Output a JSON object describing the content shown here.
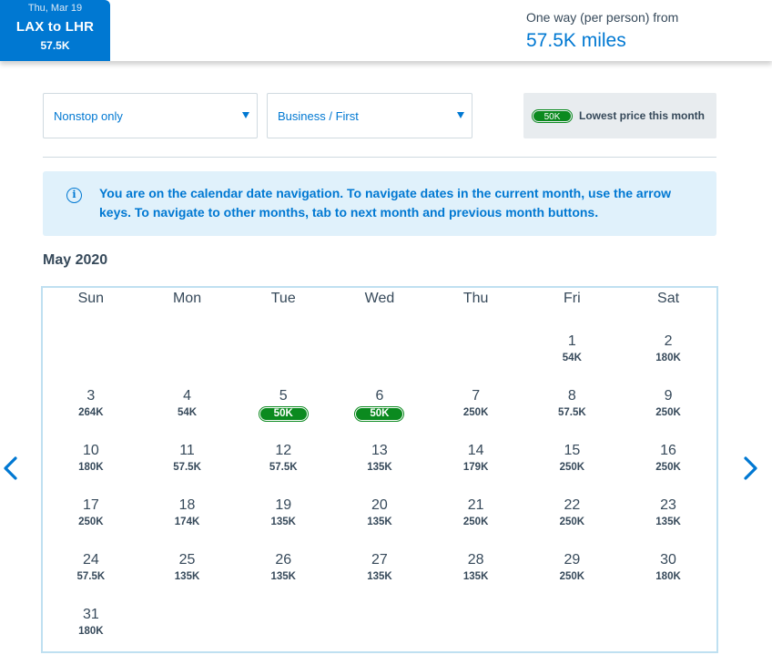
{
  "header": {
    "date_tab": {
      "date": "Thu, Mar 19",
      "route": "LAX to LHR",
      "price": "57.5K"
    },
    "fare_label": "One way (per person) from",
    "fare_value": "57.5K miles"
  },
  "filters": {
    "stops": "Nonstop only",
    "cabin": "Business / First"
  },
  "legend": {
    "badge": "50K",
    "label": "Lowest price this month"
  },
  "info_banner": {
    "text": "You are on the calendar date navigation. To navigate dates in the current month, use the arrow keys. To navigate to other months, tab to next month and previous month buttons."
  },
  "calendar": {
    "month": "May 2020",
    "weekdays": [
      "Sun",
      "Mon",
      "Tue",
      "Wed",
      "Thu",
      "Fri",
      "Sat"
    ],
    "first_weekday_index": 5,
    "days": [
      {
        "day": "1",
        "price": "54K",
        "lowest": false
      },
      {
        "day": "2",
        "price": "180K",
        "lowest": false
      },
      {
        "day": "3",
        "price": "264K",
        "lowest": false
      },
      {
        "day": "4",
        "price": "54K",
        "lowest": false
      },
      {
        "day": "5",
        "price": "50K",
        "lowest": true
      },
      {
        "day": "6",
        "price": "50K",
        "lowest": true
      },
      {
        "day": "7",
        "price": "250K",
        "lowest": false
      },
      {
        "day": "8",
        "price": "57.5K",
        "lowest": false
      },
      {
        "day": "9",
        "price": "250K",
        "lowest": false
      },
      {
        "day": "10",
        "price": "180K",
        "lowest": false
      },
      {
        "day": "11",
        "price": "57.5K",
        "lowest": false
      },
      {
        "day": "12",
        "price": "57.5K",
        "lowest": false
      },
      {
        "day": "13",
        "price": "135K",
        "lowest": false
      },
      {
        "day": "14",
        "price": "179K",
        "lowest": false
      },
      {
        "day": "15",
        "price": "250K",
        "lowest": false
      },
      {
        "day": "16",
        "price": "250K",
        "lowest": false
      },
      {
        "day": "17",
        "price": "250K",
        "lowest": false
      },
      {
        "day": "18",
        "price": "174K",
        "lowest": false
      },
      {
        "day": "19",
        "price": "135K",
        "lowest": false
      },
      {
        "day": "20",
        "price": "135K",
        "lowest": false
      },
      {
        "day": "21",
        "price": "250K",
        "lowest": false
      },
      {
        "day": "22",
        "price": "250K",
        "lowest": false
      },
      {
        "day": "23",
        "price": "135K",
        "lowest": false
      },
      {
        "day": "24",
        "price": "57.5K",
        "lowest": false
      },
      {
        "day": "25",
        "price": "135K",
        "lowest": false
      },
      {
        "day": "26",
        "price": "135K",
        "lowest": false
      },
      {
        "day": "27",
        "price": "135K",
        "lowest": false
      },
      {
        "day": "28",
        "price": "135K",
        "lowest": false
      },
      {
        "day": "29",
        "price": "250K",
        "lowest": false
      },
      {
        "day": "30",
        "price": "180K",
        "lowest": false
      },
      {
        "day": "31",
        "price": "180K",
        "lowest": false
      }
    ]
  },
  "icons": {
    "prev": "chevron-left-icon",
    "next": "chevron-right-icon",
    "info": "info-icon",
    "dropdown": "caret-down-icon"
  },
  "colors": {
    "brand_blue": "#0078d2",
    "lowest_green": "#0b8a1f",
    "banner_bg": "#e0f1fb",
    "text_dark": "#36495a"
  }
}
